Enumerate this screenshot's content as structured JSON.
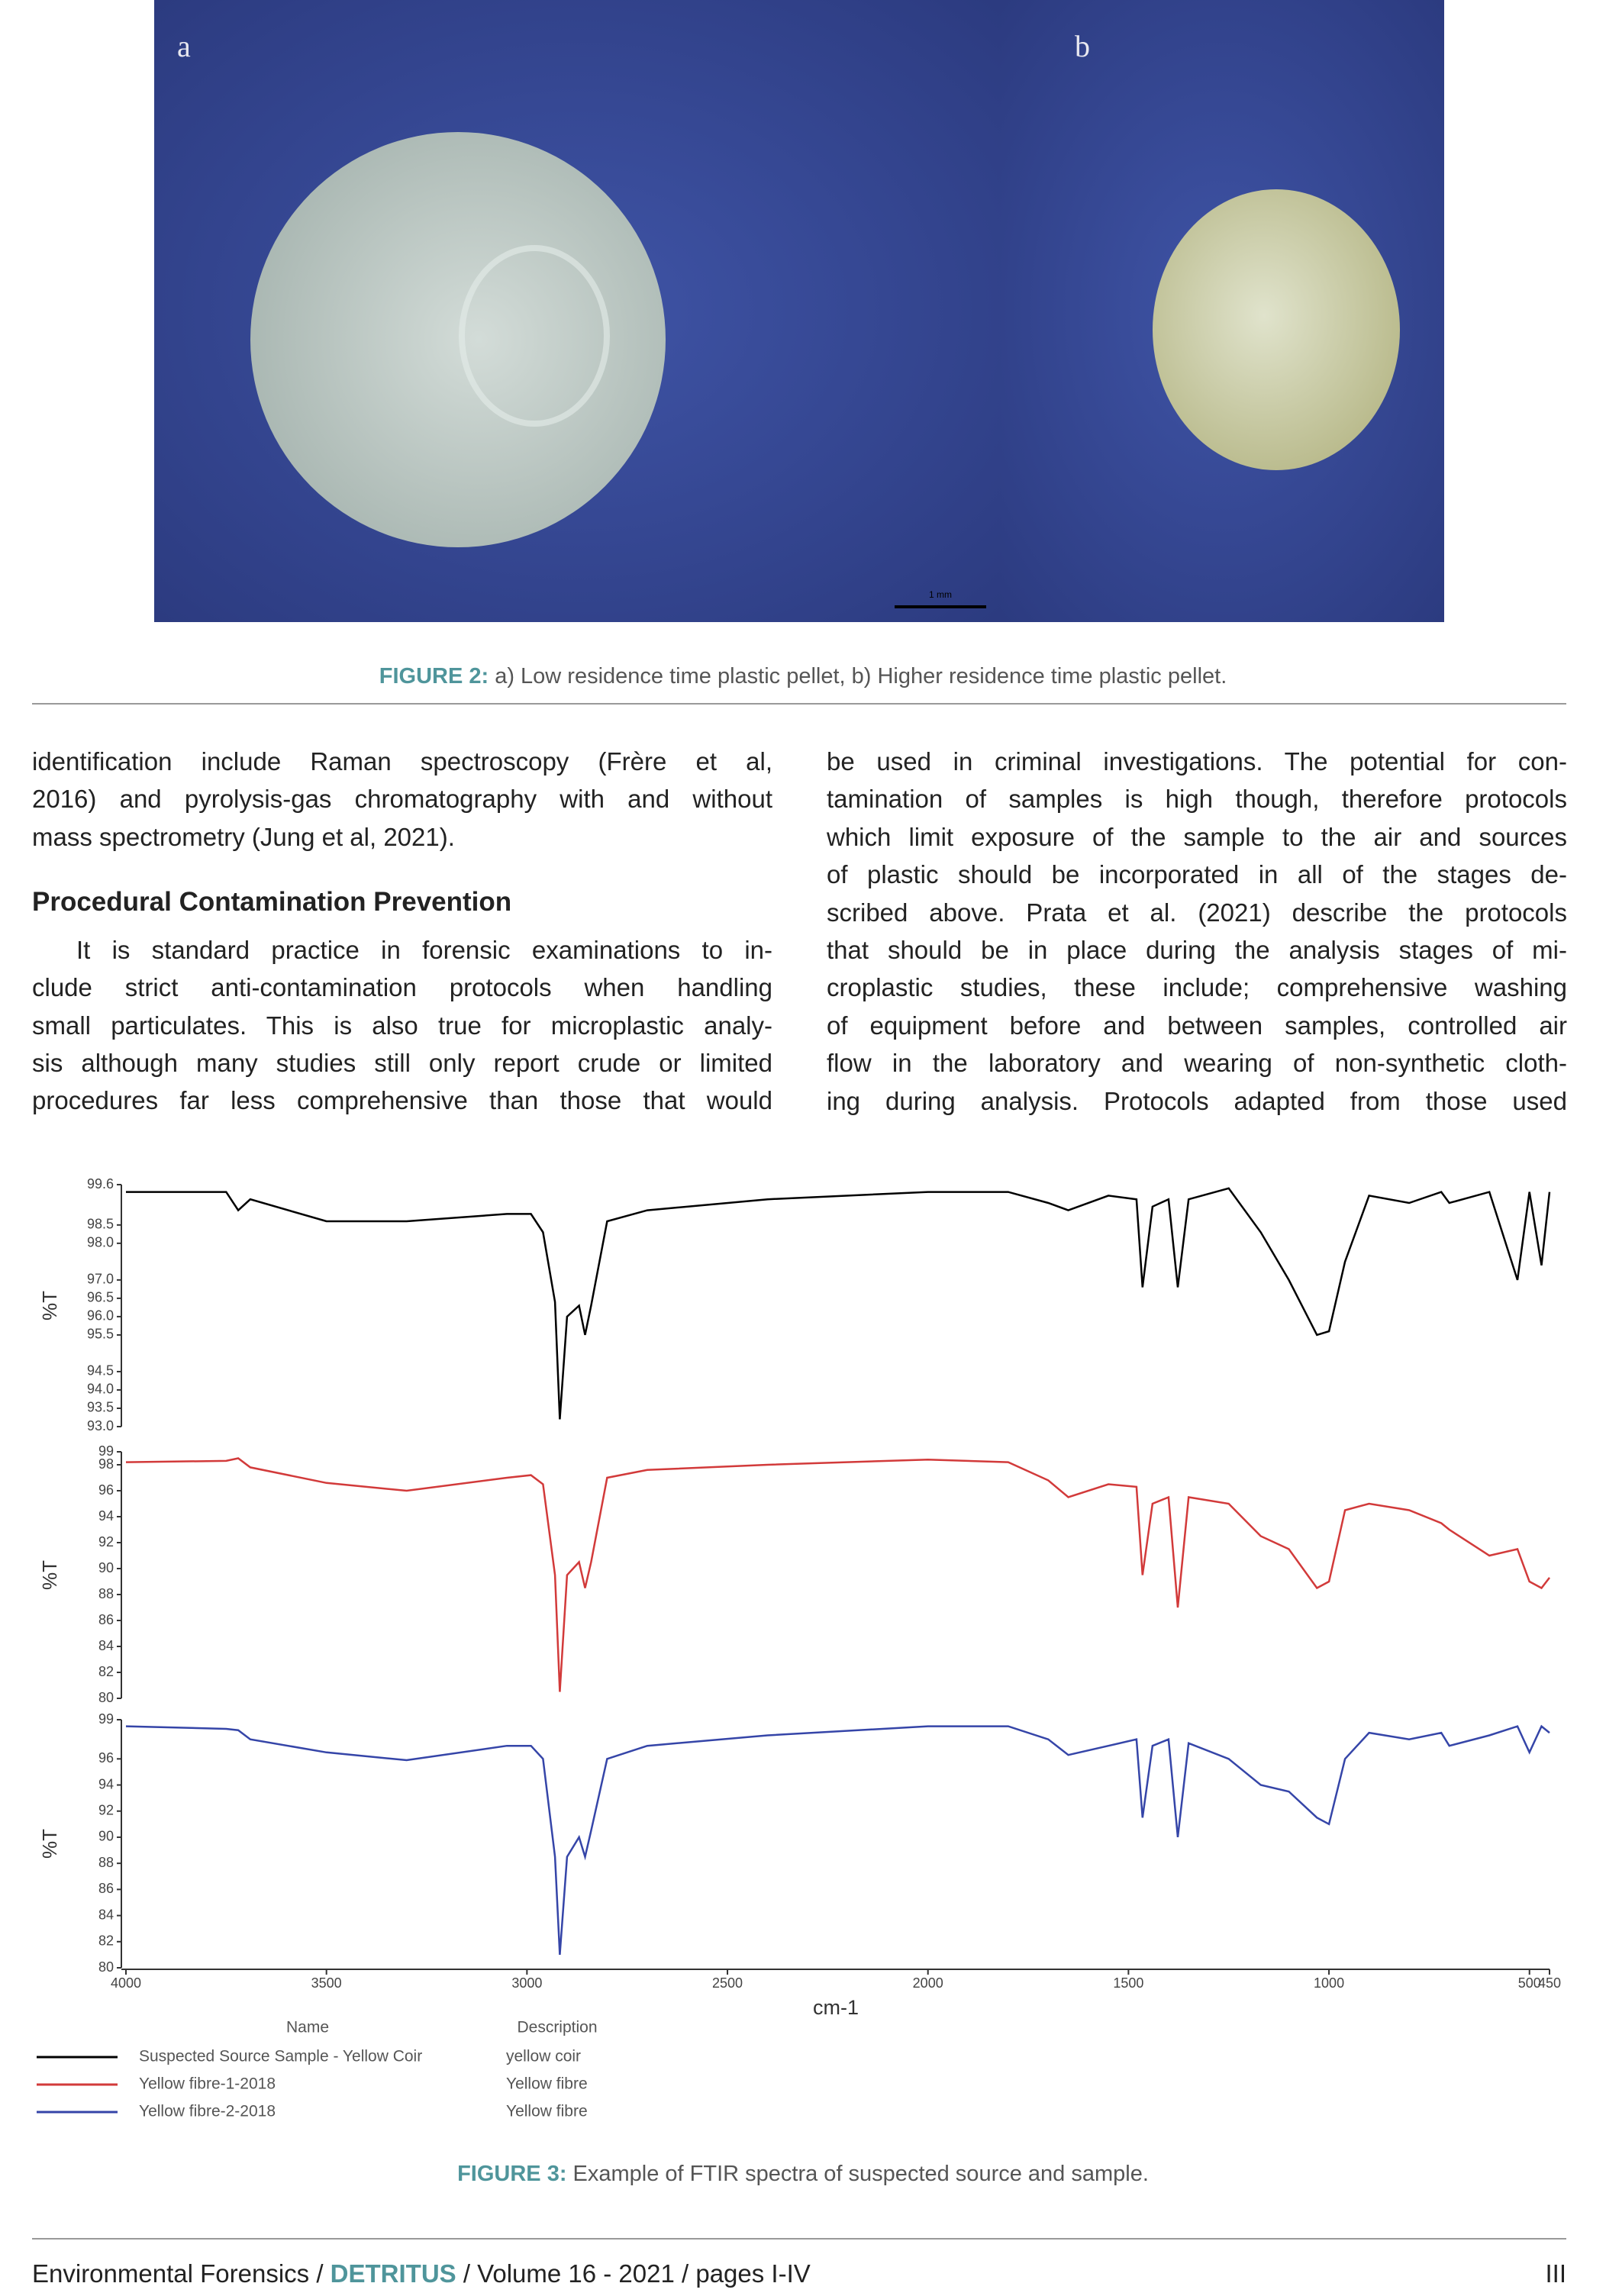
{
  "figure2": {
    "panel_labels": [
      "a",
      "b"
    ],
    "scale_bar": "1 mm",
    "caption_label": "FIGURE 2:",
    "caption_text": " a) Low residence time plastic pellet, b) Higher residence time plastic pellet."
  },
  "body": {
    "left_lines": [
      "identification include Raman spectroscopy (Frère et al,",
      "2016) and pyrolysis-gas chromatography with and without",
      "mass spectrometry (Jung et al, 2021)."
    ],
    "heading": "Procedural Contamination Prevention",
    "para_lines": [
      "It is standard practice in forensic examinations to in-",
      "clude strict anti-contamination protocols when handling",
      "small particulates. This is also true for microplastic analy-",
      "sis although many studies still only report crude or limited",
      "procedures far less comprehensive than those that would"
    ],
    "right_lines": [
      "be used in criminal investigations. The potential for con-",
      "tamination of samples is high though, therefore protocols",
      "which limit exposure of the sample to the air and sources",
      "of plastic should be incorporated in all of the stages de-",
      "scribed above. Prata et al. (2021) describe the protocols",
      "that should be in place during the analysis stages of mi-",
      "croplastic studies, these include; comprehensive washing",
      "of equipment before and between samples, controlled air",
      "flow in the laboratory and wearing of non-synthetic cloth-",
      "ing during analysis. Protocols adapted from those used"
    ]
  },
  "chart_data": [
    {
      "type": "line",
      "y_label": "%T",
      "x": [
        4000,
        3750,
        3720,
        3690,
        3500,
        3300,
        3050,
        2990,
        2960,
        2930,
        2918,
        2900,
        2870,
        2855,
        2840,
        2800,
        2700,
        2400,
        2000,
        1800,
        1700,
        1650,
        1550,
        1480,
        1465,
        1440,
        1400,
        1377,
        1350,
        1250,
        1170,
        1100,
        1030,
        1000,
        960,
        900,
        800,
        720,
        700,
        600,
        530,
        500,
        470,
        450
      ],
      "xlim": [
        4000,
        450
      ],
      "ylim": [
        93,
        99.6
      ],
      "yticks": [
        99.6,
        98.5,
        {
          "value": 98,
          "label": "98.0"
        },
        {
          "value": 97,
          "label": "97.0"
        },
        96.5,
        {
          "value": 96,
          "label": "96.0"
        },
        95.5,
        94.5,
        {
          "value": 94,
          "label": "94.0"
        },
        93.5,
        {
          "value": 93,
          "label": "93.0"
        }
      ],
      "series": [
        {
          "name": "Suspected Source Sample - Yellow Coir",
          "description": "yellow coir",
          "color": "#000000",
          "values": [
            99.4,
            99.4,
            98.9,
            99.2,
            98.6,
            98.6,
            98.8,
            98.8,
            98.3,
            96.4,
            93.2,
            96.0,
            96.3,
            95.5,
            96.3,
            98.6,
            98.9,
            99.2,
            99.4,
            99.4,
            99.1,
            98.9,
            99.3,
            99.2,
            96.8,
            99.0,
            99.2,
            96.8,
            99.2,
            99.5,
            98.3,
            97.0,
            95.5,
            95.6,
            97.5,
            99.3,
            99.1,
            99.4,
            99.1,
            99.4,
            97.0,
            99.4,
            97.4,
            99.4
          ]
        }
      ]
    },
    {
      "type": "line",
      "y_label": "%T",
      "x": [
        4000,
        3750,
        3720,
        3690,
        3500,
        3300,
        3050,
        2990,
        2960,
        2930,
        2918,
        2900,
        2870,
        2855,
        2840,
        2800,
        2700,
        2400,
        2000,
        1800,
        1700,
        1650,
        1550,
        1480,
        1465,
        1440,
        1400,
        1377,
        1350,
        1250,
        1170,
        1100,
        1030,
        1000,
        960,
        900,
        800,
        720,
        700,
        600,
        530,
        500,
        470,
        450
      ],
      "xlim": [
        4000,
        450
      ],
      "ylim": [
        80,
        99
      ],
      "yticks": [
        99,
        98,
        96,
        94,
        92,
        90,
        88,
        86,
        84,
        82,
        80
      ],
      "series": [
        {
          "name": "Yellow fibre-1-2018",
          "description": "Yellow fibre",
          "color": "#d23a3a",
          "values": [
            98.2,
            98.3,
            98.5,
            97.8,
            96.6,
            96.0,
            97.0,
            97.2,
            96.5,
            89.5,
            80.5,
            89.5,
            90.5,
            88.5,
            90.5,
            97.0,
            97.6,
            98.0,
            98.4,
            98.2,
            96.8,
            95.5,
            96.5,
            96.3,
            89.5,
            95.0,
            95.5,
            87.0,
            95.5,
            95.0,
            92.5,
            91.5,
            88.5,
            89.0,
            94.5,
            95.0,
            94.5,
            93.5,
            93.0,
            91.0,
            91.5,
            89.0,
            88.5,
            89.3
          ]
        }
      ]
    },
    {
      "type": "line",
      "y_label": "%T",
      "x_label": "cm-1",
      "x": [
        4000,
        3750,
        3720,
        3690,
        3500,
        3300,
        3050,
        2990,
        2960,
        2930,
        2918,
        2900,
        2870,
        2855,
        2840,
        2800,
        2700,
        2400,
        2000,
        1800,
        1700,
        1650,
        1550,
        1480,
        1465,
        1440,
        1400,
        1377,
        1350,
        1250,
        1170,
        1100,
        1030,
        1000,
        960,
        900,
        800,
        720,
        700,
        600,
        530,
        500,
        470,
        450
      ],
      "xlim": [
        4000,
        450
      ],
      "ylim": [
        80,
        99
      ],
      "xticks": [
        4000,
        3500,
        3000,
        2500,
        2000,
        1500,
        1000,
        500,
        450
      ],
      "yticks": [
        99,
        96,
        94,
        92,
        90,
        88,
        86,
        84,
        82,
        80
      ],
      "series": [
        {
          "name": "Yellow fibre-2-2018",
          "description": "Yellow fibre",
          "color": "#3545a8",
          "values": [
            98.5,
            98.3,
            98.2,
            97.5,
            96.5,
            95.9,
            97.0,
            97.0,
            96.0,
            88.5,
            81.0,
            88.5,
            90.0,
            88.5,
            90.5,
            96.0,
            97.0,
            97.8,
            98.5,
            98.5,
            97.5,
            96.3,
            97.0,
            97.5,
            91.5,
            97.0,
            97.5,
            90.0,
            97.2,
            96.0,
            94.0,
            93.5,
            91.5,
            91.0,
            96.0,
            98.0,
            97.5,
            98.0,
            97.0,
            97.8,
            98.5,
            96.5,
            98.5,
            98.0
          ]
        }
      ]
    }
  ],
  "figure3": {
    "legend_headers": [
      "Name",
      "Description"
    ],
    "caption_label": "FIGURE 3:",
    "caption_text": " Example of  FTIR spectra of suspected source and sample."
  },
  "footer": {
    "journal_pre": "Environmental Forensics / ",
    "journal": "DETRITUS",
    "journal_post": " / Volume 16 - 2021 / pages I-IV",
    "page": "III"
  }
}
